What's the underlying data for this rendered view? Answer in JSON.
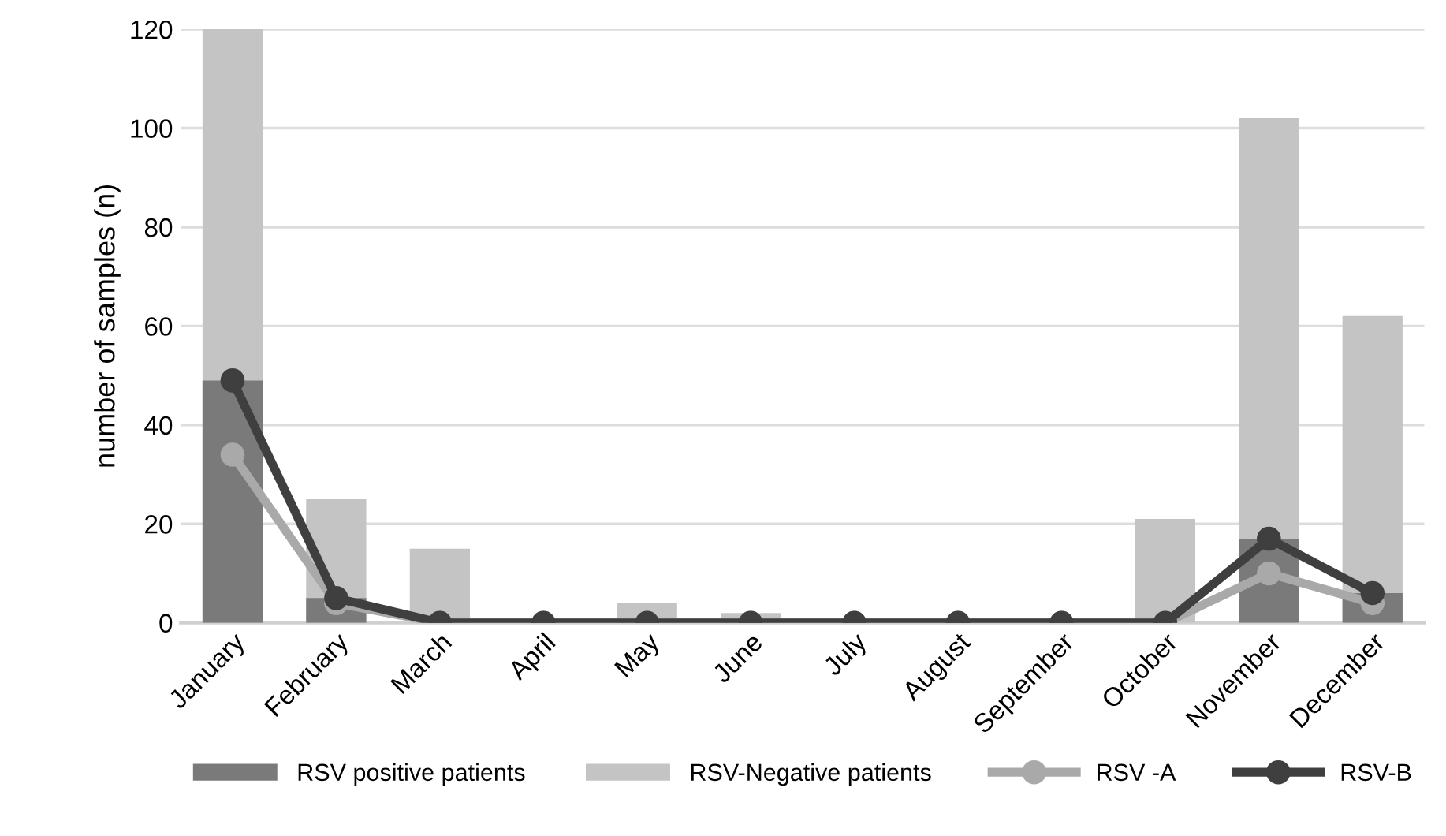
{
  "chart_data": {
    "type": "bar",
    "ylabel": "number of samples (n)",
    "categories": [
      "January",
      "February",
      "March",
      "April",
      "May",
      "June",
      "July",
      "August",
      "September",
      "October",
      "November",
      "December"
    ],
    "series": [
      {
        "name": "RSV positive patients",
        "color": "#7a7a7a",
        "values": [
          49,
          5,
          0,
          0,
          0,
          0,
          0,
          0,
          0,
          0,
          17,
          6
        ]
      },
      {
        "name": "RSV-Negative patients",
        "color": "#c4c4c4",
        "values": [
          120,
          25,
          15,
          0,
          4,
          2,
          0,
          0,
          0,
          21,
          102,
          62
        ]
      },
      {
        "name": "RSV -A",
        "type": "line",
        "color": "#a9a9a9",
        "values": [
          34,
          4,
          0,
          0,
          0,
          0,
          0,
          0,
          0,
          0,
          10,
          4
        ]
      },
      {
        "name": "RSV-B",
        "type": "line",
        "color": "#3f3f3f",
        "values": [
          49,
          5,
          0,
          0,
          0,
          0,
          0,
          0,
          0,
          0,
          17,
          6
        ]
      }
    ],
    "ylim": [
      0,
      120
    ],
    "yticks": [
      0,
      20,
      40,
      60,
      80,
      100,
      120
    ],
    "grid": "y",
    "legend": "bottom",
    "marker": "circle",
    "line_style": "solid"
  }
}
